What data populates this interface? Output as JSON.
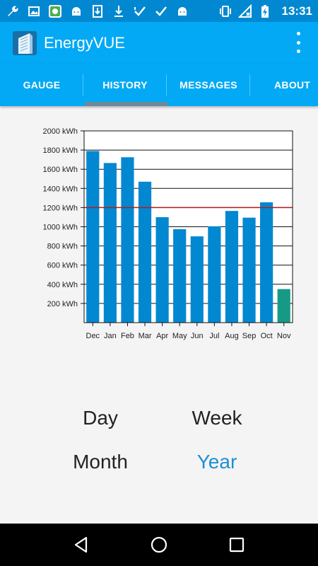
{
  "status_bar": {
    "time": "13:31",
    "left_icons": [
      "wrench-icon",
      "image-icon",
      "android-box-icon",
      "android-icon",
      "download-icon",
      "download-icon",
      "check-icon",
      "check-icon",
      "android-icon"
    ],
    "right_icons": [
      "vibrate-icon",
      "signal-off-icon",
      "battery-charging-icon"
    ]
  },
  "app_bar": {
    "title": "EnergyVUE"
  },
  "tabs": [
    {
      "label": "GAUGE",
      "selected": false
    },
    {
      "label": "HISTORY",
      "selected": true
    },
    {
      "label": "MESSAGES",
      "selected": false
    },
    {
      "label": "ABOUT",
      "selected": false
    }
  ],
  "range_selector": {
    "day": "Day",
    "week": "Week",
    "month": "Month",
    "year": "Year",
    "selected": "Year"
  },
  "colors": {
    "status_bar": "#0288d1",
    "app_bar": "#03a9f4",
    "bar": "#0288d1",
    "current_bar": "#169a86",
    "average_line": "#b71c1c",
    "selected_range": "#1e90d6"
  },
  "chart_data": {
    "type": "bar",
    "categories": [
      "Dec",
      "Jan",
      "Feb",
      "Mar",
      "Apr",
      "May",
      "Jun",
      "Jul",
      "Aug",
      "Sep",
      "Oct",
      "Nov"
    ],
    "values": [
      1790,
      1665,
      1725,
      1470,
      1100,
      975,
      900,
      1005,
      1165,
      1095,
      1255,
      350
    ],
    "highlight_last": true,
    "reference_line": 1200,
    "ylim": [
      0,
      2000
    ],
    "yticks": [
      200,
      400,
      600,
      800,
      1000,
      1200,
      1400,
      1600,
      1800,
      2000
    ],
    "ytick_labels": [
      "200 kWh",
      "400 kWh",
      "600 kWh",
      "800 kWh",
      "1000 kWh",
      "1200 kWh",
      "1400 kWh",
      "1600 kWh",
      "1800 kWh",
      "2000 kWh"
    ],
    "grid": true,
    "title": "",
    "xlabel": "",
    "ylabel": ""
  },
  "nav_bar": {
    "icons": [
      "back-icon",
      "home-icon",
      "recents-icon"
    ]
  }
}
